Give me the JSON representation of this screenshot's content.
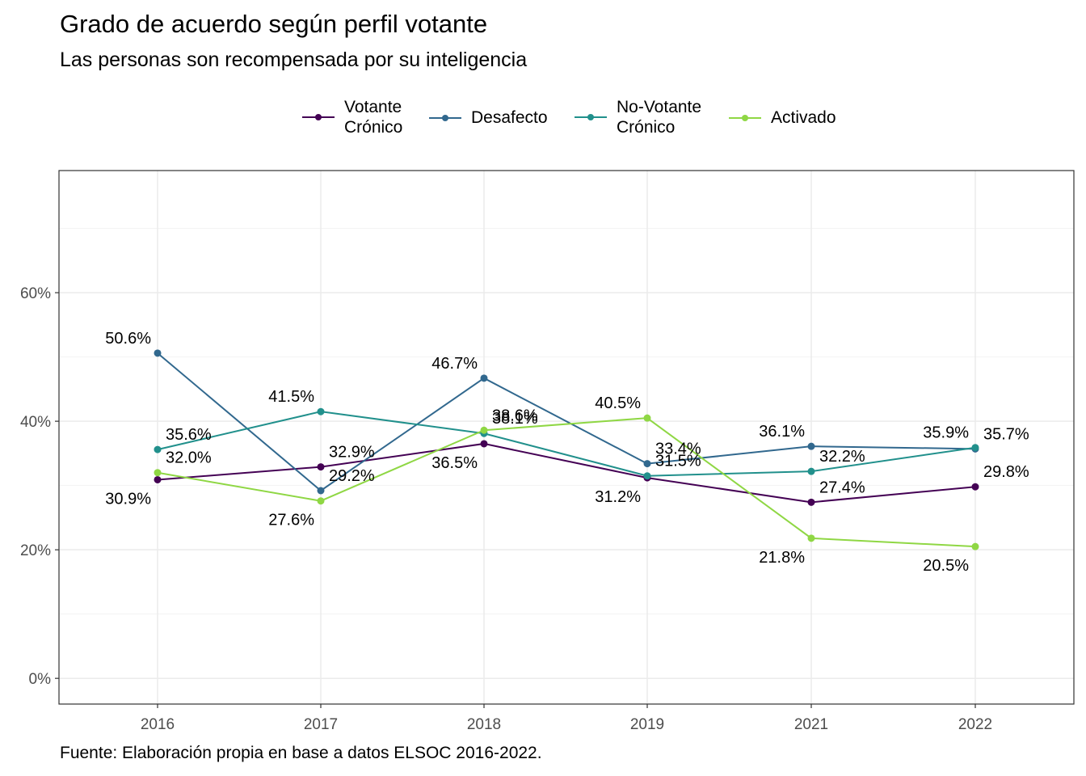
{
  "title": "Grado de acuerdo según perfil votante",
  "subtitle": "Las personas son recompensada por su inteligencia",
  "caption": "Fuente: Elaboración propia en base a datos ELSOC 2016-2022.",
  "chart_data": {
    "type": "line",
    "title": "Grado de acuerdo según perfil votante",
    "subtitle": "Las personas son recompensada por su inteligencia",
    "xlabel": "",
    "ylabel": "",
    "categories": [
      "2016",
      "2017",
      "2018",
      "2019",
      "2021",
      "2022"
    ],
    "ylim": [
      -0.04,
      0.79
    ],
    "y_ticks": [
      0,
      0.2,
      0.4,
      0.6
    ],
    "y_tick_labels": [
      "0%",
      "20%",
      "40%",
      "60%"
    ],
    "grid": true,
    "legend_position": "top",
    "series": [
      {
        "name": "Votante\nCrónico",
        "color": "#440154",
        "values": [
          0.309,
          0.329,
          0.365,
          0.312,
          0.274,
          0.298
        ],
        "labels": [
          "30.9%",
          "32.9%",
          "36.5%",
          "31.2%",
          "27.4%",
          "29.8%"
        ]
      },
      {
        "name": "Desafecto",
        "color": "#31688E",
        "values": [
          0.506,
          0.292,
          0.467,
          0.334,
          0.361,
          0.357
        ],
        "labels": [
          "50.6%",
          "29.2%",
          "46.7%",
          "33.4%",
          "36.1%",
          "35.7%"
        ]
      },
      {
        "name": "No-Votante\nCrónico",
        "color": "#21908C",
        "values": [
          0.356,
          0.415,
          0.381,
          0.315,
          0.322,
          0.359
        ],
        "labels": [
          "35.6%",
          "41.5%",
          "38.1%",
          "31.5%",
          "32.2%",
          "35.9%"
        ]
      },
      {
        "name": "Activado",
        "color": "#8FD744",
        "values": [
          0.32,
          0.276,
          0.386,
          0.405,
          0.218,
          0.205
        ],
        "labels": [
          "32.0%",
          "27.6%",
          "38.6%",
          "40.5%",
          "21.8%",
          "20.5%"
        ]
      }
    ]
  }
}
